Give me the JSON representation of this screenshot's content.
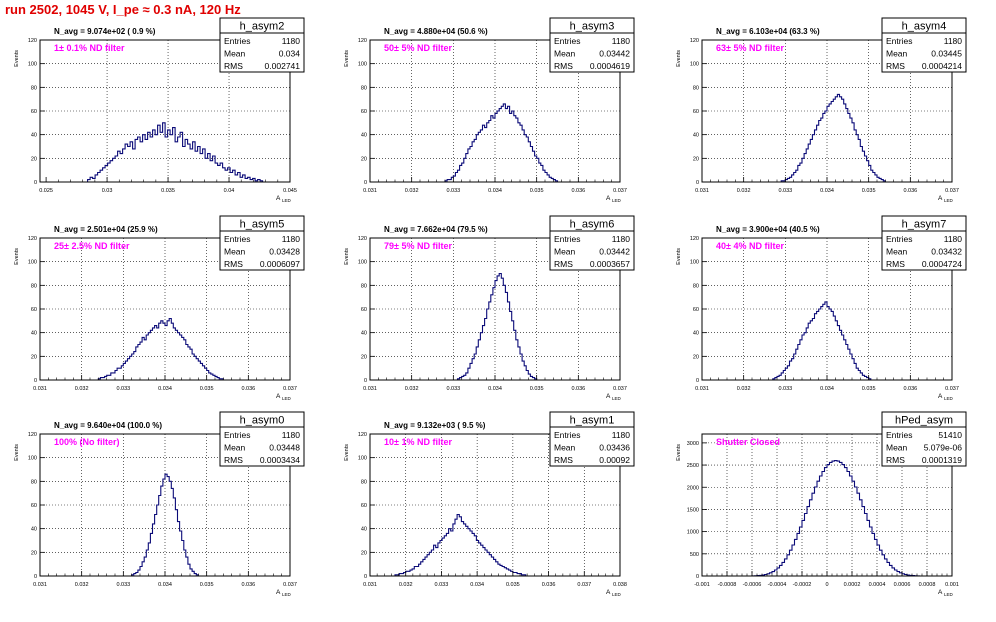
{
  "run_title": "run 2502,  1045 V, I_pe ≈ 0.3 nA, 120 Hz",
  "colors": {
    "histogram_line": "#0b0b78",
    "filter_label": "#ff00ff",
    "run_title": "#e00000",
    "grid": "#000000"
  },
  "stat_labels": {
    "entries": "Entries",
    "mean": "Mean",
    "rms": "RMS"
  },
  "y_axis_label": "Events",
  "x_axis_label": "A",
  "x_axis_sublabel": "LED",
  "chart_data": [
    {
      "type": "bar",
      "name": "h_asym2",
      "avg_label": "N_avg = 9.074e+02 ( 0.9 %)",
      "filter_label": "1± 0.1% ND filter",
      "stats": {
        "entries": "1180",
        "mean": "0.034",
        "rms": "0.002741"
      },
      "xlim": [
        0.0245,
        0.045
      ],
      "ylim": [
        0,
        120
      ],
      "x_ticks": [
        0.025,
        0.03,
        0.035,
        0.04,
        0.045
      ],
      "x_tick_labels": [
        "0.025",
        "0.03",
        "0.035",
        "0.04",
        "0.045"
      ],
      "y_ticks": [
        0,
        20,
        40,
        60,
        80,
        100,
        120
      ],
      "y_tick_labels": [
        "0",
        "20",
        "40",
        "60",
        "80",
        "100",
        "120"
      ],
      "bin_start": 0.0284,
      "bin_width": 0.000205,
      "values": [
        2,
        4,
        3,
        6,
        8,
        10,
        12,
        14,
        16,
        18,
        20,
        22,
        26,
        24,
        28,
        32,
        30,
        34,
        28,
        36,
        38,
        34,
        40,
        36,
        42,
        38,
        44,
        40,
        48,
        42,
        50,
        38,
        44,
        40,
        46,
        34,
        38,
        42,
        30,
        36,
        32,
        28,
        34,
        26,
        30,
        24,
        28,
        20,
        24,
        18,
        22,
        16,
        14,
        16,
        12,
        10,
        12,
        8,
        10,
        6,
        8,
        4,
        6,
        3,
        4,
        2,
        3,
        1,
        2,
        1
      ]
    },
    {
      "type": "bar",
      "name": "h_asym3",
      "avg_label": "N_avg = 4.880e+04 (50.6 %)",
      "filter_label": "50± 5% ND filter",
      "stats": {
        "entries": "1180",
        "mean": "0.03442",
        "rms": "0.0004619"
      },
      "xlim": [
        0.031,
        0.037
      ],
      "ylim": [
        0,
        120
      ],
      "x_ticks": [
        0.031,
        0.032,
        0.033,
        0.034,
        0.035,
        0.036,
        0.037
      ],
      "x_tick_labels": [
        "0.031",
        "0.032",
        "0.033",
        "0.034",
        "0.035",
        "0.036",
        "0.037"
      ],
      "y_ticks": [
        0,
        20,
        40,
        60,
        80,
        100,
        120
      ],
      "y_tick_labels": [
        "0",
        "20",
        "40",
        "60",
        "80",
        "100",
        "120"
      ],
      "bin_start": 0.0328,
      "bin_width": 5e-05,
      "values": [
        1,
        2,
        2,
        4,
        5,
        8,
        10,
        14,
        16,
        20,
        24,
        28,
        30,
        34,
        36,
        40,
        42,
        44,
        48,
        46,
        50,
        52,
        56,
        54,
        58,
        60,
        62,
        64,
        66,
        62,
        64,
        58,
        60,
        56,
        54,
        50,
        48,
        44,
        40,
        38,
        34,
        30,
        26,
        22,
        20,
        16,
        14,
        10,
        8,
        6,
        4,
        3,
        2,
        1
      ]
    },
    {
      "type": "bar",
      "name": "h_asym4",
      "avg_label": "N_avg = 6.103e+04 (63.3 %)",
      "filter_label": "63± 5% ND filter",
      "stats": {
        "entries": "1180",
        "mean": "0.03445",
        "rms": "0.0004214"
      },
      "xlim": [
        0.031,
        0.037
      ],
      "ylim": [
        0,
        120
      ],
      "x_ticks": [
        0.031,
        0.032,
        0.033,
        0.034,
        0.035,
        0.036,
        0.037
      ],
      "x_tick_labels": [
        "0.031",
        "0.032",
        "0.033",
        "0.034",
        "0.035",
        "0.036",
        "0.037"
      ],
      "y_ticks": [
        0,
        20,
        40,
        60,
        80,
        100,
        120
      ],
      "y_tick_labels": [
        "0",
        "20",
        "40",
        "60",
        "80",
        "100",
        "120"
      ],
      "bin_start": 0.0329,
      "bin_width": 5e-05,
      "values": [
        1,
        1,
        2,
        3,
        4,
        6,
        8,
        10,
        14,
        16,
        20,
        24,
        28,
        32,
        36,
        40,
        44,
        48,
        52,
        54,
        58,
        60,
        64,
        66,
        68,
        70,
        72,
        74,
        72,
        70,
        66,
        62,
        58,
        54,
        50,
        44,
        40,
        36,
        30,
        26,
        22,
        18,
        14,
        10,
        8,
        6,
        4,
        3,
        2,
        1
      ]
    },
    {
      "type": "bar",
      "name": "h_asym5",
      "avg_label": "N_avg = 2.501e+04 (25.9 %)",
      "filter_label": "25± 2.5% ND filter",
      "stats": {
        "entries": "1180",
        "mean": "0.03428",
        "rms": "0.0006097"
      },
      "xlim": [
        0.031,
        0.037
      ],
      "ylim": [
        0,
        120
      ],
      "x_ticks": [
        0.031,
        0.032,
        0.033,
        0.034,
        0.035,
        0.036,
        0.037
      ],
      "x_tick_labels": [
        "0.031",
        "0.032",
        "0.033",
        "0.034",
        "0.035",
        "0.036",
        "0.037"
      ],
      "y_ticks": [
        0,
        20,
        40,
        60,
        80,
        100,
        120
      ],
      "y_tick_labels": [
        "0",
        "20",
        "40",
        "60",
        "80",
        "100",
        "120"
      ],
      "bin_start": 0.0324,
      "bin_width": 5e-05,
      "values": [
        1,
        2,
        2,
        3,
        4,
        4,
        6,
        6,
        8,
        10,
        10,
        12,
        14,
        16,
        18,
        20,
        22,
        24,
        28,
        30,
        32,
        36,
        34,
        38,
        40,
        42,
        44,
        46,
        44,
        48,
        50,
        48,
        46,
        50,
        52,
        48,
        44,
        42,
        40,
        38,
        36,
        34,
        30,
        28,
        26,
        22,
        20,
        18,
        16,
        14,
        12,
        10,
        8,
        6,
        5,
        4,
        3,
        2,
        1,
        1
      ]
    },
    {
      "type": "bar",
      "name": "h_asym6",
      "avg_label": "N_avg = 7.662e+04 (79.5 %)",
      "filter_label": "79± 5% ND filter",
      "stats": {
        "entries": "1180",
        "mean": "0.03442",
        "rms": "0.0003657"
      },
      "xlim": [
        0.031,
        0.037
      ],
      "ylim": [
        0,
        120
      ],
      "x_ticks": [
        0.031,
        0.032,
        0.033,
        0.034,
        0.035,
        0.036,
        0.037
      ],
      "x_tick_labels": [
        "0.031",
        "0.032",
        "0.033",
        "0.034",
        "0.035",
        "0.036",
        "0.037"
      ],
      "y_ticks": [
        0,
        20,
        40,
        60,
        80,
        100,
        120
      ],
      "y_tick_labels": [
        "0",
        "20",
        "40",
        "60",
        "80",
        "100",
        "120"
      ],
      "bin_start": 0.0331,
      "bin_width": 5e-05,
      "values": [
        1,
        2,
        3,
        4,
        6,
        10,
        14,
        18,
        22,
        28,
        34,
        40,
        46,
        52,
        60,
        66,
        72,
        78,
        84,
        88,
        90,
        86,
        80,
        74,
        66,
        58,
        50,
        42,
        34,
        28,
        22,
        16,
        12,
        8,
        5,
        3,
        2,
        1
      ]
    },
    {
      "type": "bar",
      "name": "h_asym7",
      "avg_label": "N_avg = 3.900e+04 (40.5 %)",
      "filter_label": "40± 4% ND filter",
      "stats": {
        "entries": "1180",
        "mean": "0.03432",
        "rms": "0.0004724"
      },
      "xlim": [
        0.031,
        0.037
      ],
      "ylim": [
        0,
        120
      ],
      "x_ticks": [
        0.031,
        0.032,
        0.033,
        0.034,
        0.035,
        0.036,
        0.037
      ],
      "x_tick_labels": [
        "0.031",
        "0.032",
        "0.033",
        "0.034",
        "0.035",
        "0.036",
        "0.037"
      ],
      "y_ticks": [
        0,
        20,
        40,
        60,
        80,
        100,
        120
      ],
      "y_tick_labels": [
        "0",
        "20",
        "40",
        "60",
        "80",
        "100",
        "120"
      ],
      "bin_start": 0.0327,
      "bin_width": 5e-05,
      "values": [
        1,
        2,
        3,
        4,
        6,
        8,
        10,
        12,
        16,
        18,
        22,
        26,
        30,
        34,
        38,
        40,
        44,
        48,
        50,
        52,
        56,
        58,
        60,
        62,
        64,
        66,
        62,
        60,
        58,
        54,
        50,
        46,
        42,
        38,
        34,
        30,
        26,
        22,
        18,
        14,
        10,
        8,
        6,
        4,
        3,
        2,
        1
      ]
    },
    {
      "type": "bar",
      "name": "h_asym0",
      "avg_label": "N_avg = 9.640e+04 (100.0 %)",
      "filter_label": "100% (No filter)",
      "stats": {
        "entries": "1180",
        "mean": "0.03448",
        "rms": "0.0003434"
      },
      "xlim": [
        0.031,
        0.037
      ],
      "ylim": [
        0,
        120
      ],
      "x_ticks": [
        0.031,
        0.032,
        0.033,
        0.034,
        0.035,
        0.036,
        0.037
      ],
      "x_tick_labels": [
        "0.031",
        "0.032",
        "0.033",
        "0.034",
        "0.035",
        "0.036",
        "0.037"
      ],
      "y_ticks": [
        0,
        20,
        40,
        60,
        80,
        100,
        120
      ],
      "y_tick_labels": [
        "0",
        "20",
        "40",
        "60",
        "80",
        "100",
        "120"
      ],
      "bin_start": 0.0332,
      "bin_width": 5e-05,
      "values": [
        1,
        2,
        3,
        5,
        8,
        12,
        16,
        22,
        28,
        36,
        44,
        52,
        60,
        68,
        76,
        82,
        86,
        84,
        80,
        74,
        66,
        56,
        46,
        38,
        30,
        22,
        16,
        10,
        6,
        4,
        2,
        1
      ]
    },
    {
      "type": "bar",
      "name": "h_asym1",
      "avg_label": "N_avg = 9.132e+03 ( 9.5 %)",
      "filter_label": "10± 1% ND filter",
      "stats": {
        "entries": "1180",
        "mean": "0.03436",
        "rms": "0.00092"
      },
      "xlim": [
        0.031,
        0.038
      ],
      "ylim": [
        0,
        120
      ],
      "x_ticks": [
        0.031,
        0.032,
        0.033,
        0.034,
        0.035,
        0.036,
        0.037,
        0.038
      ],
      "x_tick_labels": [
        "0.031",
        "0.032",
        "0.033",
        "0.034",
        "0.035",
        "0.036",
        "0.037",
        "0.038"
      ],
      "y_ticks": [
        0,
        20,
        40,
        60,
        80,
        100,
        120
      ],
      "y_tick_labels": [
        "0",
        "20",
        "40",
        "60",
        "80",
        "100",
        "120"
      ],
      "bin_start": 0.0317,
      "bin_width": 6e-05,
      "values": [
        1,
        1,
        2,
        2,
        3,
        4,
        4,
        5,
        6,
        8,
        8,
        10,
        12,
        14,
        16,
        18,
        20,
        22,
        26,
        24,
        28,
        30,
        32,
        34,
        36,
        40,
        38,
        44,
        48,
        52,
        50,
        46,
        44,
        42,
        40,
        38,
        36,
        34,
        30,
        28,
        26,
        24,
        22,
        20,
        18,
        16,
        14,
        12,
        10,
        9,
        8,
        7,
        6,
        5,
        4,
        3,
        3,
        2,
        2,
        1,
        1
      ]
    },
    {
      "type": "bar",
      "name": "hPed_asym",
      "avg_label": "",
      "filter_label": "Shutter Closed",
      "stats": {
        "entries": "51410",
        "mean": "5.079e-06",
        "rms": "0.0001319"
      },
      "xlim": [
        -0.001,
        0.001
      ],
      "ylim": [
        0,
        3200
      ],
      "x_ticks": [
        -0.001,
        -0.0008,
        -0.0006,
        -0.0004,
        -0.0002,
        0,
        0.0002,
        0.0004,
        0.0006,
        0.0008,
        0.001
      ],
      "x_tick_labels": [
        "-0.001",
        "-0.0008",
        "-0.0006",
        "-0.0004",
        "-0.0002",
        "0",
        "0.0002",
        "0.0004",
        "0.0006",
        "0.0008",
        "0.001"
      ],
      "y_ticks": [
        0,
        500,
        1000,
        1500,
        2000,
        2500,
        3000
      ],
      "y_tick_labels": [
        "0",
        "500",
        "1000",
        "1500",
        "2000",
        "2500",
        "3000"
      ],
      "bin_start": -0.0006,
      "bin_width": 2e-05,
      "values": [
        2,
        4,
        8,
        14,
        22,
        34,
        50,
        72,
        100,
        136,
        182,
        238,
        306,
        386,
        478,
        582,
        698,
        824,
        960,
        1104,
        1254,
        1408,
        1564,
        1718,
        1866,
        2006,
        2136,
        2254,
        2356,
        2442,
        2510,
        2560,
        2590,
        2600,
        2590,
        2560,
        2510,
        2442,
        2356,
        2254,
        2136,
        2006,
        1866,
        1718,
        1564,
        1408,
        1254,
        1104,
        960,
        824,
        698,
        582,
        478,
        386,
        306,
        238,
        182,
        136,
        100,
        72,
        50,
        34,
        22,
        14,
        8,
        4,
        2
      ]
    }
  ]
}
